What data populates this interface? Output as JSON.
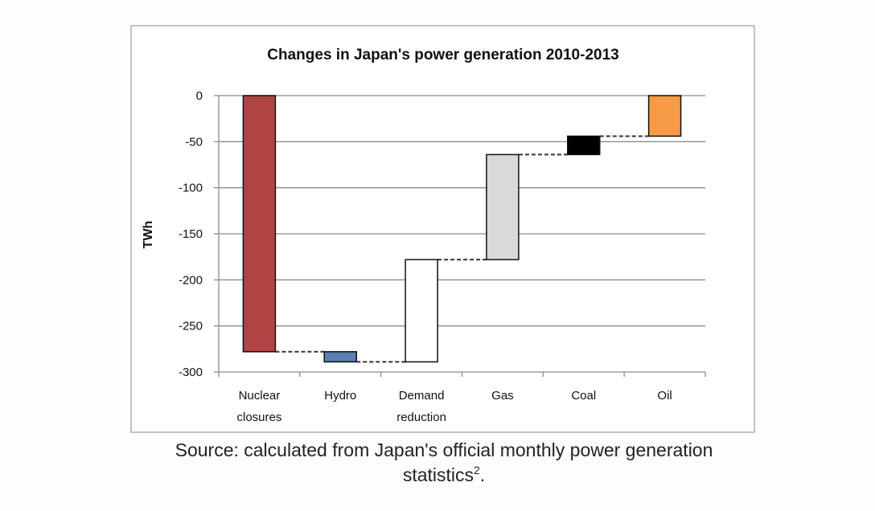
{
  "chart_data": {
    "type": "bar",
    "subtype": "waterfall",
    "title": "Changes in Japan's power generation 2010-2013",
    "ylabel": "TWh",
    "xlabel": "",
    "ylim": [
      -300,
      0
    ],
    "yticks": [
      "0",
      "-50",
      "-100",
      "-150",
      "-200",
      "-250",
      "-300"
    ],
    "ytick_values": [
      0,
      -50,
      -100,
      -150,
      -200,
      -250,
      -300
    ],
    "grid": true,
    "categories": [
      {
        "lines": [
          "Nuclear",
          "closures"
        ]
      },
      {
        "lines": [
          "Hydro"
        ]
      },
      {
        "lines": [
          "Demand",
          "reduction"
        ]
      },
      {
        "lines": [
          "Gas"
        ]
      },
      {
        "lines": [
          "Coal"
        ]
      },
      {
        "lines": [
          "Oil"
        ]
      }
    ],
    "bars": [
      {
        "start": 0,
        "end": -278,
        "color": "#b04444"
      },
      {
        "start": -278,
        "end": -289,
        "color": "#5b7fb0"
      },
      {
        "start": -289,
        "end": -178,
        "color": "#ffffff"
      },
      {
        "start": -178,
        "end": -64,
        "color": "#d9d9d9"
      },
      {
        "start": -64,
        "end": -44,
        "color": "#000000"
      },
      {
        "start": -44,
        "end": 0,
        "color": "#f79a45"
      }
    ]
  },
  "caption": {
    "line1": "Source: calculated from Japan's official monthly power generation",
    "line2": "statistics",
    "superscript": "2",
    "line2_end": "."
  }
}
